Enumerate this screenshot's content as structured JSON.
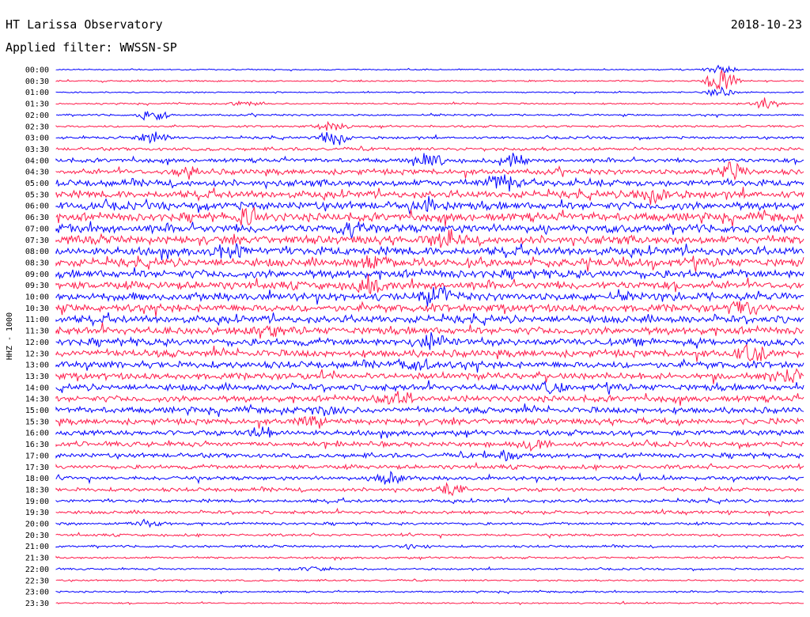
{
  "header": {
    "station": "HT Larissa Observatory",
    "date": "2018-10-23",
    "filter": "Applied filter: WWSSN-SP"
  },
  "chart_data": {
    "type": "line",
    "title": "HT Larissa Observatory",
    "subtitle": "Applied filter: WWSSN-SP",
    "date": "2018-10-23",
    "ylabel": "HHZ - 1000",
    "xlabel": "",
    "rows": [
      "00:00",
      "00:30",
      "01:00",
      "01:30",
      "02:00",
      "02:30",
      "03:00",
      "03:30",
      "04:00",
      "04:30",
      "05:00",
      "05:30",
      "06:00",
      "06:30",
      "07:00",
      "07:30",
      "08:00",
      "08:30",
      "09:00",
      "09:30",
      "10:00",
      "10:30",
      "11:00",
      "11:30",
      "12:00",
      "12:30",
      "13:00",
      "13:30",
      "14:00",
      "14:30",
      "15:00",
      "15:30",
      "16:00",
      "16:30",
      "17:00",
      "17:30",
      "18:00",
      "18:30",
      "19:00",
      "19:30",
      "20:00",
      "20:30",
      "21:00",
      "21:30",
      "22:00",
      "22:30",
      "23:00",
      "23:30"
    ],
    "colors": [
      "#0000ff",
      "#ff1a4a"
    ],
    "noise_level": [
      0.6,
      0.7,
      0.6,
      0.7,
      0.9,
      1.0,
      1.2,
      1.5,
      2.0,
      2.6,
      3.2,
      3.5,
      3.8,
      4.0,
      4.0,
      4.0,
      4.0,
      4.0,
      3.9,
      3.8,
      3.8,
      3.7,
      3.6,
      3.6,
      3.5,
      3.4,
      3.3,
      3.2,
      3.1,
      3.0,
      2.9,
      2.8,
      2.6,
      2.4,
      2.2,
      2.0,
      1.9,
      1.8,
      1.6,
      1.5,
      1.3,
      1.2,
      1.1,
      1.0,
      0.9,
      0.8,
      0.8,
      0.7
    ],
    "events": [
      {
        "row": 0,
        "pos": 0.89,
        "amp": 4.5
      },
      {
        "row": 1,
        "pos": 0.89,
        "amp": 12
      },
      {
        "row": 2,
        "pos": 0.89,
        "amp": 6
      },
      {
        "row": 3,
        "pos": 0.95,
        "amp": 5
      },
      {
        "row": 3,
        "pos": 0.25,
        "amp": 2.5
      },
      {
        "row": 4,
        "pos": 0.13,
        "amp": 8
      },
      {
        "row": 5,
        "pos": 0.37,
        "amp": 6
      },
      {
        "row": 6,
        "pos": 0.37,
        "amp": 9
      },
      {
        "row": 6,
        "pos": 0.13,
        "amp": 6
      },
      {
        "row": 8,
        "pos": 0.5,
        "amp": 7
      },
      {
        "row": 8,
        "pos": 0.61,
        "amp": 8
      },
      {
        "row": 9,
        "pos": 0.18,
        "amp": 7
      },
      {
        "row": 9,
        "pos": 0.9,
        "amp": 9
      },
      {
        "row": 10,
        "pos": 0.6,
        "amp": 8
      },
      {
        "row": 11,
        "pos": 0.8,
        "amp": 8
      },
      {
        "row": 12,
        "pos": 0.5,
        "amp": 7
      },
      {
        "row": 13,
        "pos": 0.26,
        "amp": 9
      },
      {
        "row": 14,
        "pos": 0.4,
        "amp": 8
      },
      {
        "row": 15,
        "pos": 0.52,
        "amp": 10
      },
      {
        "row": 16,
        "pos": 0.23,
        "amp": 7
      },
      {
        "row": 17,
        "pos": 0.43,
        "amp": 6
      },
      {
        "row": 19,
        "pos": 0.42,
        "amp": 8
      },
      {
        "row": 20,
        "pos": 0.51,
        "amp": 9
      },
      {
        "row": 21,
        "pos": 0.92,
        "amp": 7
      },
      {
        "row": 23,
        "pos": 0.28,
        "amp": 6
      },
      {
        "row": 24,
        "pos": 0.5,
        "amp": 7
      },
      {
        "row": 25,
        "pos": 0.93,
        "amp": 8
      },
      {
        "row": 26,
        "pos": 0.48,
        "amp": 7
      },
      {
        "row": 27,
        "pos": 0.99,
        "amp": 6
      },
      {
        "row": 28,
        "pos": 0.66,
        "amp": 7
      },
      {
        "row": 29,
        "pos": 0.45,
        "amp": 6
      },
      {
        "row": 30,
        "pos": 0.36,
        "amp": 6
      },
      {
        "row": 31,
        "pos": 0.34,
        "amp": 6
      },
      {
        "row": 32,
        "pos": 0.28,
        "amp": 6
      },
      {
        "row": 33,
        "pos": 0.64,
        "amp": 6
      },
      {
        "row": 34,
        "pos": 0.6,
        "amp": 5
      },
      {
        "row": 36,
        "pos": 0.45,
        "amp": 6
      },
      {
        "row": 37,
        "pos": 0.53,
        "amp": 6
      },
      {
        "row": 40,
        "pos": 0.12,
        "amp": 4
      },
      {
        "row": 42,
        "pos": 0.48,
        "amp": 3
      },
      {
        "row": 44,
        "pos": 0.34,
        "amp": 2
      }
    ]
  }
}
